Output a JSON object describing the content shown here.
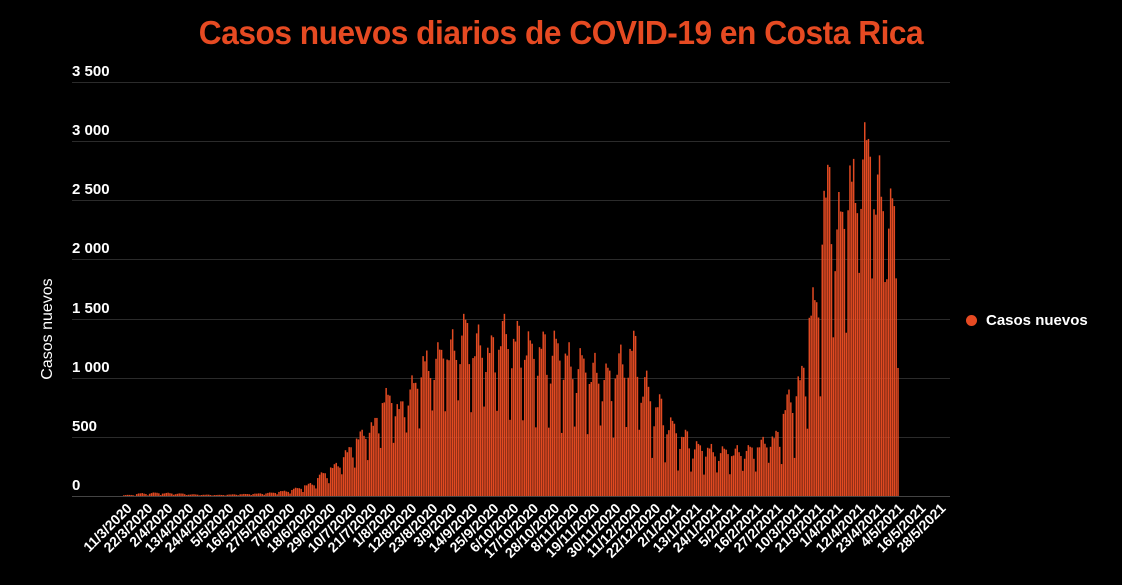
{
  "title": "Casos nuevos diarios de COVID-19 en Costa Rica",
  "legend": {
    "label": "Casos nuevos",
    "color": "#e64a22"
  },
  "colors": {
    "bar": "#e24a22",
    "background": "#000000",
    "grid": "#2b2b2b",
    "title": "#e64a22"
  },
  "chart_data": {
    "type": "bar",
    "title": "Casos nuevos diarios de COVID-19 en Costa Rica",
    "xlabel": "",
    "ylabel": "Casos nuevos",
    "ylim": [
      0,
      3500
    ],
    "yticks": [
      "0",
      "500",
      "1 000",
      "1 500",
      "2 000",
      "2 500",
      "3 000",
      "3 500"
    ],
    "ytick_values": [
      0,
      500,
      1000,
      1500,
      2000,
      2500,
      3000,
      3500
    ],
    "grid": true,
    "legend_position": "right",
    "start_date": "11/3/2020",
    "xtick_labels": [
      "11/3/2020",
      "22/3/2020",
      "2/4/2020",
      "13/4/2020",
      "24/4/2020",
      "5/5/2020",
      "16/5/2020",
      "27/5/2020",
      "7/6/2020",
      "18/6/2020",
      "29/6/2020",
      "10/7/2020",
      "21/7/2020",
      "1/8/2020",
      "12/8/2020",
      "23/8/2020",
      "3/9/2020",
      "14/9/2020",
      "25/9/2020",
      "6/10/2020",
      "17/10/2020",
      "28/10/2020",
      "8/11/2020",
      "19/11/2020",
      "30/11/2020",
      "11/12/2020",
      "22/12/2020",
      "2/1/2021",
      "13/1/2021",
      "24/1/2021",
      "5/2/2021",
      "16/2/2021",
      "27/2/2021",
      "10/3/2021",
      "21/3/2021",
      "1/4/2021",
      "12/4/2021",
      "23/4/2021",
      "4/5/2021",
      "16/5/2021",
      "28/5/2021"
    ],
    "series": [
      {
        "name": "Casos nuevos",
        "weekly_peak_values": [
          10,
          25,
          30,
          28,
          22,
          15,
          12,
          10,
          14,
          18,
          22,
          30,
          45,
          70,
          110,
          200,
          280,
          420,
          560,
          660,
          930,
          800,
          1020,
          1230,
          1300,
          1410,
          1540,
          1450,
          1380,
          1540,
          1480,
          1430,
          1390,
          1420,
          1300,
          1250,
          1210,
          1120,
          1280,
          1420,
          1060,
          860,
          690,
          560,
          470,
          440,
          420,
          430,
          430,
          500,
          560,
          900,
          1100,
          1800,
          2800,
          2570,
          2850,
          3160,
          2880,
          2600
        ],
        "weekly_trough_values": [
          2,
          5,
          8,
          10,
          8,
          5,
          4,
          4,
          6,
          8,
          10,
          15,
          20,
          35,
          60,
          110,
          170,
          240,
          330,
          400,
          480,
          520,
          600,
          690,
          740,
          760,
          720,
          700,
          720,
          700,
          630,
          620,
          560,
          560,
          560,
          540,
          560,
          500,
          540,
          560,
          350,
          280,
          230,
          200,
          190,
          190,
          190,
          200,
          210,
          260,
          270,
          350,
          560,
          900,
          1300,
          1450,
          1800,
          1900,
          1700,
          1100
        ]
      }
    ]
  }
}
